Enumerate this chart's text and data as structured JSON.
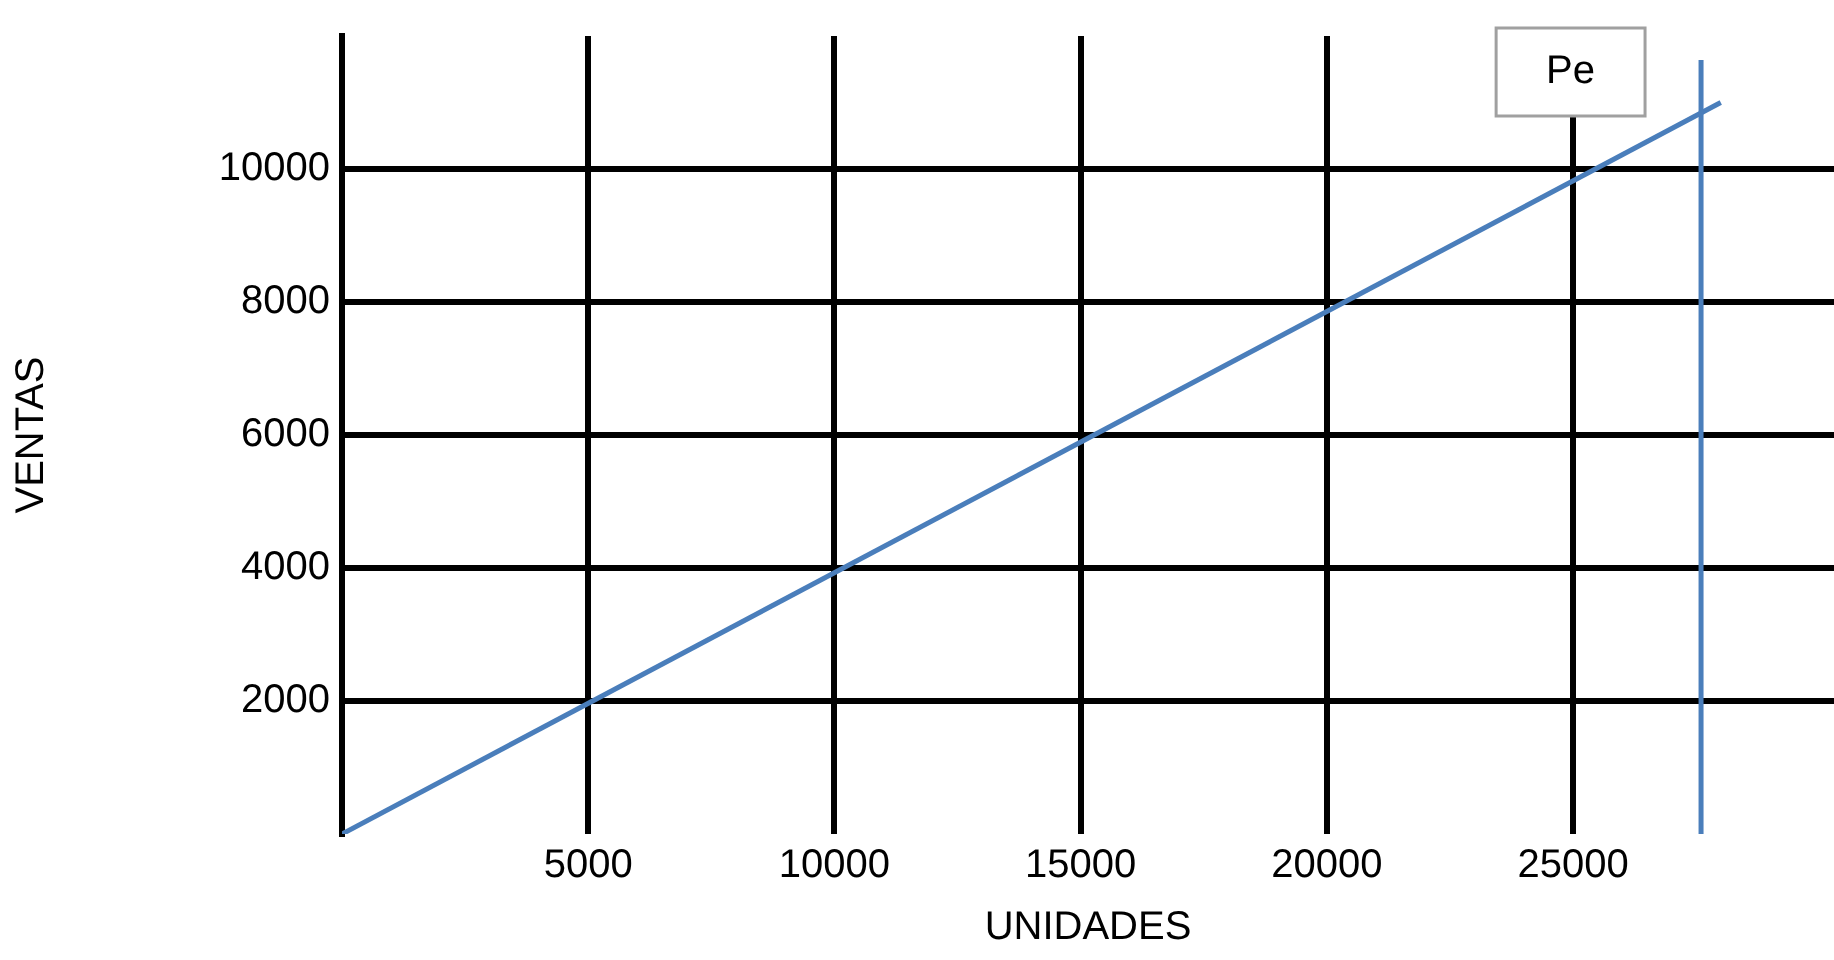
{
  "chart_data": {
    "type": "line",
    "xlabel": "UNIDADES",
    "ylabel": "VENTAS",
    "x": [
      0,
      28000
    ],
    "series": [
      {
        "color": "#4a7ebb",
        "values": [
          0,
          11000
        ]
      }
    ],
    "xlim": [
      0,
      30300
    ],
    "ylim": [
      0,
      12000
    ],
    "xticks": [
      5000,
      10000,
      15000,
      20000,
      25000
    ],
    "yticks": [
      2000,
      4000,
      6000,
      8000,
      10000
    ],
    "ref_lines": [
      {
        "axis": "x",
        "value": 27600,
        "label": "Pe",
        "color": "#4a7ebb"
      }
    ],
    "grid": true,
    "legend": false,
    "marker": "none",
    "line_style": "solid"
  }
}
